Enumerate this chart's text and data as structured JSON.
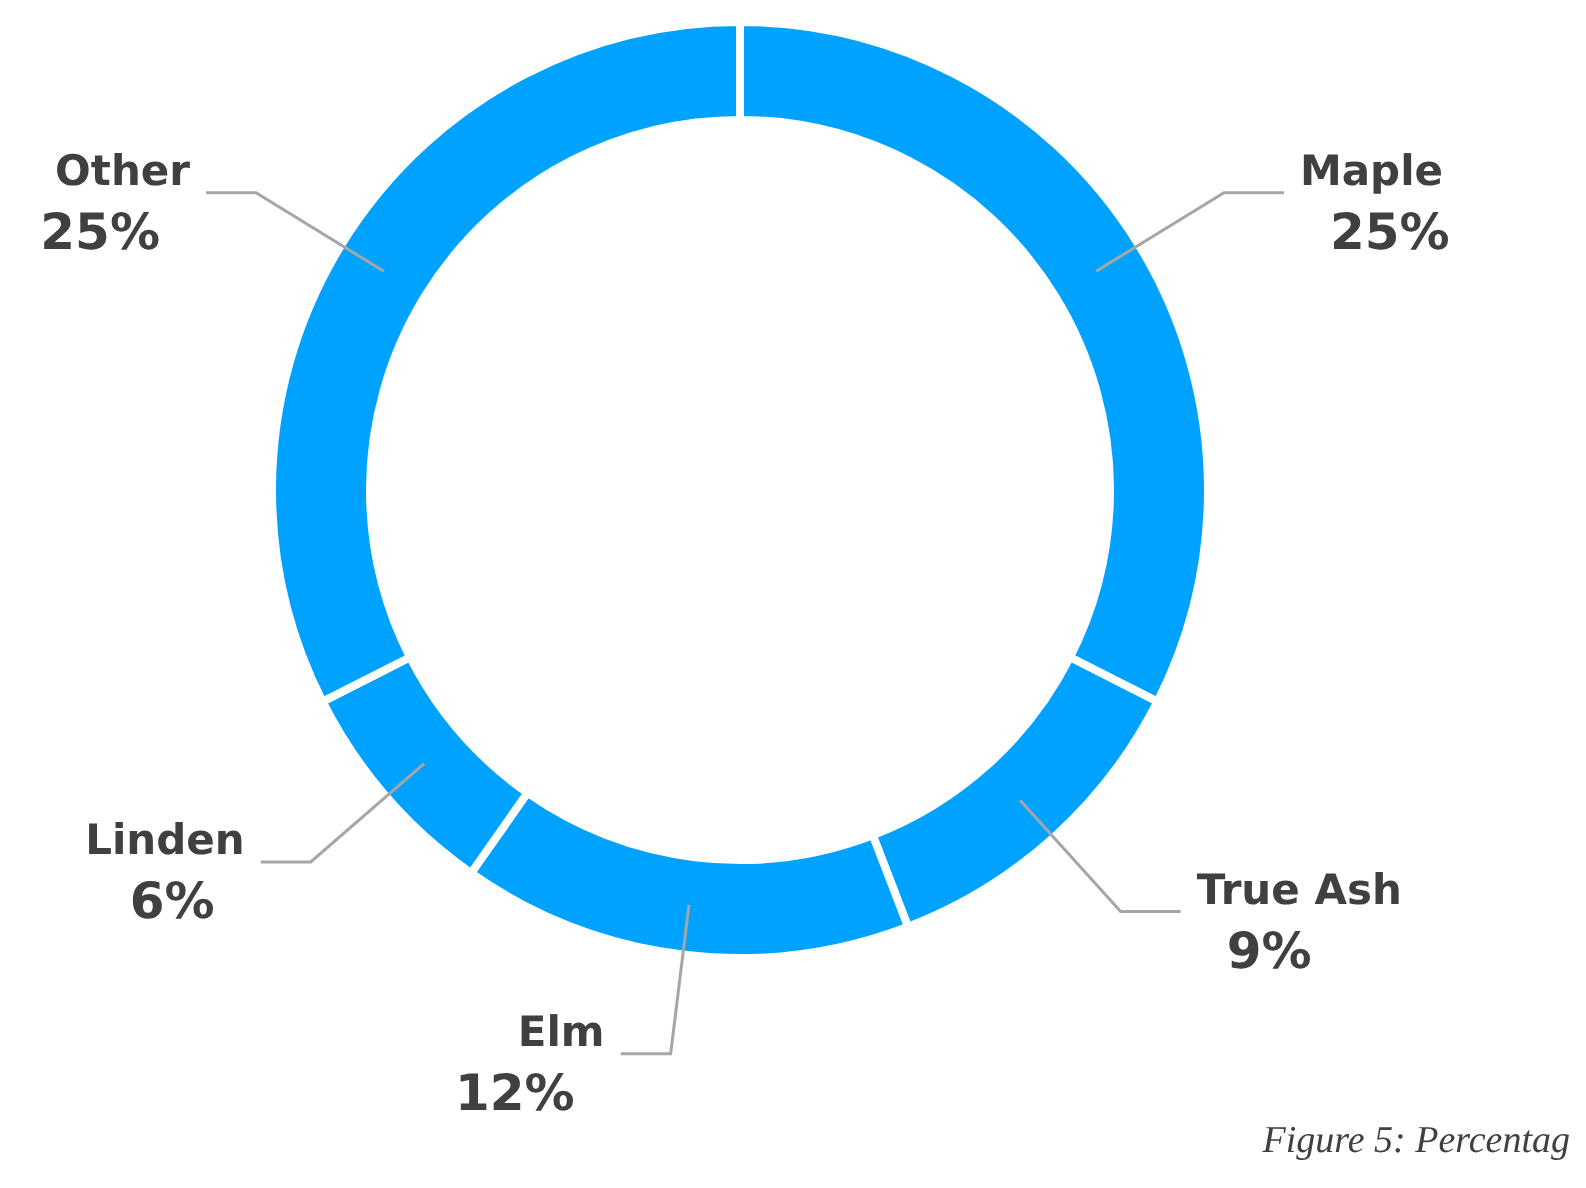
{
  "chart_data": {
    "type": "donut",
    "categories": [
      "Maple",
      "True Ash",
      "Elm",
      "Linden",
      "Other"
    ],
    "values": [
      25,
      9,
      12,
      6,
      25
    ],
    "value_labels": [
      "25%",
      "9%",
      "12%",
      "6%",
      "25%"
    ],
    "colors": [
      "#00a2ff",
      "#00a2ff",
      "#00a2ff",
      "#00a2ff",
      "#00a2ff"
    ],
    "annotations": [
      "Figure 5: Percentag"
    ]
  }
}
